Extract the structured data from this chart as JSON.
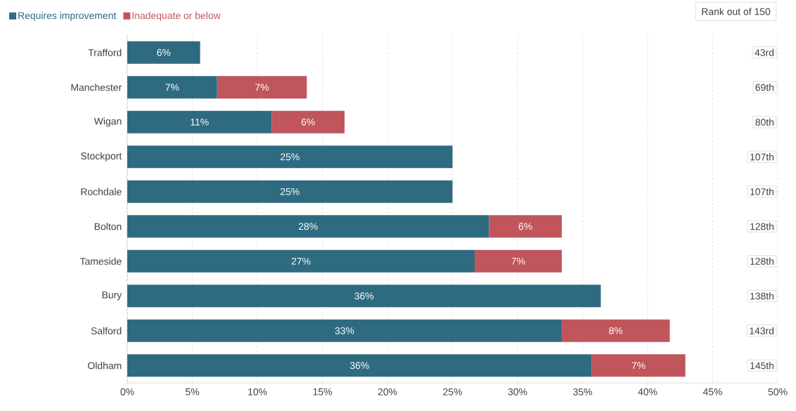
{
  "chart_data": {
    "type": "bar",
    "orientation": "horizontal",
    "stacked": true,
    "categories": [
      "Trafford",
      "Manchester",
      "Wigan",
      "Stockport",
      "Rochdale",
      "Bolton",
      "Tameside",
      "Bury",
      "Salford",
      "Oldham"
    ],
    "series": [
      {
        "name": "Requires improvement",
        "color": "#2e6b80",
        "values": [
          5.6,
          6.9,
          11.1,
          25.0,
          25.0,
          27.8,
          26.7,
          36.4,
          33.4,
          35.7
        ],
        "value_labels": [
          "6%",
          "7%",
          "11%",
          "25%",
          "25%",
          "28%",
          "27%",
          "36%",
          "33%",
          "36%"
        ]
      },
      {
        "name": "Inadequate or below",
        "color": "#c0555c",
        "values": [
          null,
          6.9,
          5.6,
          null,
          null,
          5.6,
          6.7,
          null,
          8.3,
          7.2
        ],
        "value_labels": [
          null,
          "7%",
          "6%",
          null,
          null,
          "6%",
          "7%",
          null,
          "8%",
          "7%"
        ]
      }
    ],
    "xlim": [
      0,
      50
    ],
    "xticks": [
      {
        "value": 0,
        "label": "0%"
      },
      {
        "value": 5,
        "label": "5%"
      },
      {
        "value": 10,
        "label": "10%"
      },
      {
        "value": 15,
        "label": "15%"
      },
      {
        "value": 20,
        "label": "20%"
      },
      {
        "value": 25,
        "label": "25%"
      },
      {
        "value": 30,
        "label": "30%"
      },
      {
        "value": 35,
        "label": "35%"
      },
      {
        "value": 40,
        "label": "40%"
      },
      {
        "value": 45,
        "label": "45%"
      },
      {
        "value": 50,
        "label": "50%"
      }
    ],
    "grid": "x",
    "legend": "top left",
    "annotations": [
      "Rank out of 150",
      "43rd",
      "69th",
      "80th",
      "107th",
      "107th",
      "128th",
      "128th",
      "138th",
      "143rd",
      "145th"
    ]
  }
}
